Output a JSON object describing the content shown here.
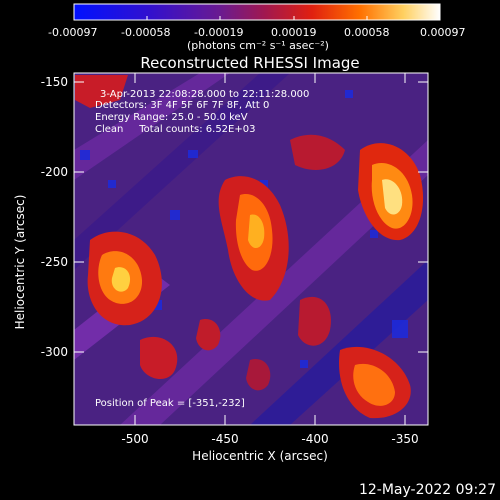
{
  "colorbar": {
    "ticks": [
      "-0.00097",
      "-0.00058",
      "-0.00019",
      "0.00019",
      "0.00058",
      "0.00097"
    ],
    "units": "(photons cm⁻² s⁻¹ asec⁻²)"
  },
  "title": "Reconstructed RHESSI Image",
  "annotations": {
    "time_range": "3-Apr-2013 22:08:28.000 to 22:11:28.000",
    "detectors": "Detectors: 3F 4F 5F 6F 7F 8F, Att 0",
    "energy": "Energy Range: 25.0 - 50.0 keV",
    "algorithm": "Clean     Total counts: 6.52E+03",
    "peak": "Position of Peak = [-351,-232]"
  },
  "axes": {
    "xlabel": "Heliocentric X (arcsec)",
    "ylabel": "Heliocentric Y (arcsec)",
    "xticks": [
      "-500",
      "-450",
      "-400",
      "-350"
    ],
    "yticks": [
      "-150",
      "-200",
      "-250",
      "-300"
    ]
  },
  "footer_timestamp": "12-May-2022 09:27",
  "colors": {
    "background": "#000000",
    "cmap_low": "#0010ff",
    "cmap_mid": "#5a1f8f",
    "cmap_high": "#ff3c00",
    "cmap_top": "#ffffff"
  }
}
